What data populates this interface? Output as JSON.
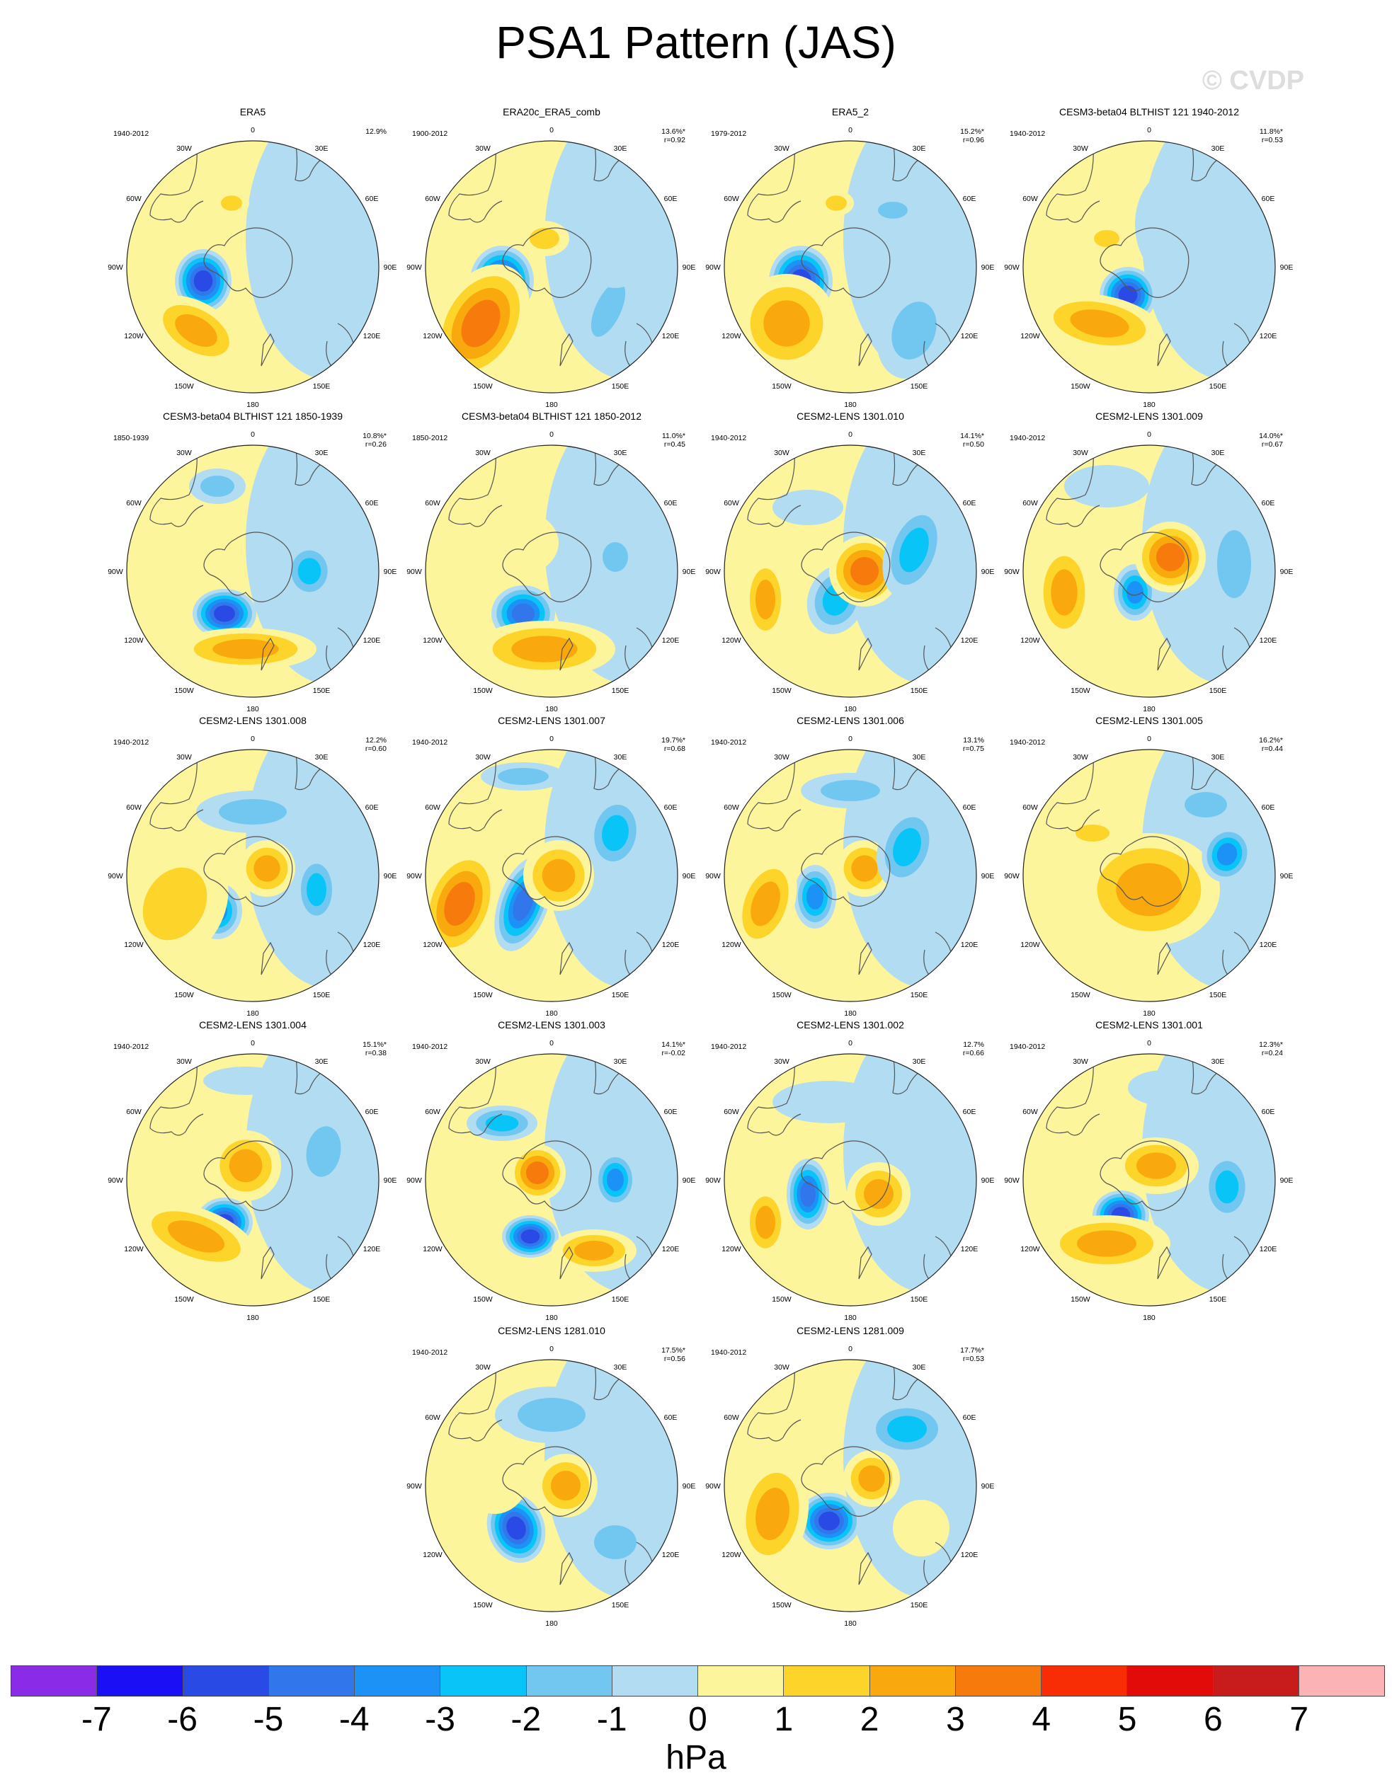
{
  "title": "PSA1 Pattern (JAS)",
  "watermark": "© CVDP",
  "units_label": "hPa",
  "colorbar": {
    "tick_labels": [
      "-7",
      "-6",
      "-5",
      "-4",
      "-3",
      "-2",
      "-1",
      "0",
      "1",
      "2",
      "3",
      "4",
      "5",
      "6",
      "7"
    ],
    "colors": [
      "#8a2be8",
      "#1b10f5",
      "#2a4ae6",
      "#3176ea",
      "#1c92f6",
      "#09c4f7",
      "#72c7f1",
      "#b2dcf2",
      "#fdf59c",
      "#fcd42a",
      "#f9a80e",
      "#f77a0c",
      "#f82d06",
      "#e30a0a",
      "#c81c1c",
      "#fbb3b5"
    ]
  },
  "map_labels": {
    "lon_top": "0",
    "lon_30e": "30E",
    "lon_60e": "60E",
    "lon_90e": "90E",
    "lon_120e": "120E",
    "lon_150e": "150E",
    "lon_180": "180",
    "lon_150w": "150W",
    "lon_120w": "120W",
    "lon_90w": "90W",
    "lon_60w": "60W",
    "lon_30w": "30W"
  },
  "panels": [
    {
      "title": "ERA5",
      "period": "1940-2012",
      "pct": "12.9%",
      "r": ""
    },
    {
      "title": "ERA20c_ERA5_comb",
      "period": "1900-2012",
      "pct": "13.6%*",
      "r": "r=0.92"
    },
    {
      "title": "ERA5_2",
      "period": "1979-2012",
      "pct": "15.2%*",
      "r": "r=0.96"
    },
    {
      "title": "CESM3-beta04 BLTHIST 121 1940-2012",
      "period": "1940-2012",
      "pct": "11.8%*",
      "r": "r=0.53"
    },
    {
      "title": "CESM3-beta04 BLTHIST 121 1850-1939",
      "period": "1850-1939",
      "pct": "10.8%*",
      "r": "r=0.26"
    },
    {
      "title": "CESM3-beta04 BLTHIST 121 1850-2012",
      "period": "1850-2012",
      "pct": "11.0%*",
      "r": "r=0.45"
    },
    {
      "title": "CESM2-LENS 1301.010",
      "period": "1940-2012",
      "pct": "14.1%*",
      "r": "r=0.50"
    },
    {
      "title": "CESM2-LENS 1301.009",
      "period": "1940-2012",
      "pct": "14.0%*",
      "r": "r=0.67"
    },
    {
      "title": "CESM2-LENS 1301.008",
      "period": "1940-2012",
      "pct": "12.2%",
      "r": "r=0.60"
    },
    {
      "title": "CESM2-LENS 1301.007",
      "period": "1940-2012",
      "pct": "19.7%*",
      "r": "r=0.68"
    },
    {
      "title": "CESM2-LENS 1301.006",
      "period": "1940-2012",
      "pct": "13.1%",
      "r": "r=0.75"
    },
    {
      "title": "CESM2-LENS 1301.005",
      "period": "1940-2012",
      "pct": "16.2%*",
      "r": "r=0.44"
    },
    {
      "title": "CESM2-LENS 1301.004",
      "period": "1940-2012",
      "pct": "15.1%*",
      "r": "r=0.38"
    },
    {
      "title": "CESM2-LENS 1301.003",
      "period": "1940-2012",
      "pct": "14.1%*",
      "r": "r=-0.02"
    },
    {
      "title": "CESM2-LENS 1301.002",
      "period": "1940-2012",
      "pct": "12.7%",
      "r": "r=0.66"
    },
    {
      "title": "CESM2-LENS 1301.001",
      "period": "1940-2012",
      "pct": "12.3%*",
      "r": "r=0.24"
    },
    {
      "title": "CESM2-LENS 1281.010",
      "period": "1940-2012",
      "pct": "17.5%*",
      "r": "r=0.56"
    },
    {
      "title": "CESM2-LENS 1281.009",
      "period": "1940-2012",
      "pct": "17.7%*",
      "r": "r=0.53"
    }
  ]
}
